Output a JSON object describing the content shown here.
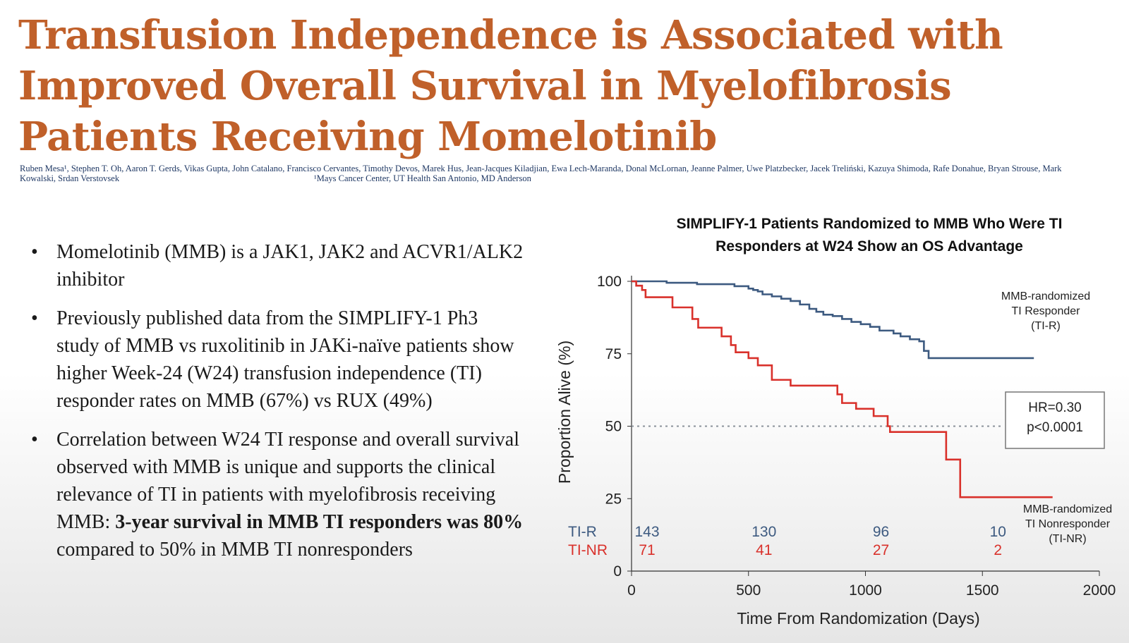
{
  "slide": {
    "title": "Transfusion Independence is Associated with Improved Overall Survival in Myelofibrosis Patients Receiving Momelotinib",
    "authors": "Ruben Mesa¹, Stephen T. Oh, Aaron T. Gerds, Vikas Gupta, John Catalano, Francisco Cervantes, Timothy Devos, Marek Hus, Jean-Jacques Kiladjian, Ewa Lech-Maranda, Donal McLornan, Jeanne Palmer, Uwe Platzbecker, Jacek Treliński, Kazuya Shimoda, Rafe Donahue, Bryan Strouse, Mark Kowalski, Srdan Verstovsek",
    "affiliation": "¹Mays Cancer Center, UT Health San Antonio, MD Anderson",
    "bullets": [
      {
        "text": "Momelotinib (MMB) is a JAK1, JAK2 and ACVR1/ALK2 inhibitor"
      },
      {
        "text": "Previously published data from the SIMPLIFY-1 Ph3 study of MMB vs ruxolitinib in JAKi-naïve patients show higher Week-24 (W24) transfusion independence (TI) responder rates on MMB (67%) vs RUX (49%)"
      },
      {
        "text_before": "Correlation between W24 TI response and overall survival observed with MMB is unique and supports the clinical relevance of TI in patients with myelofibrosis receiving MMB: ",
        "bold": "3-year survival in MMB TI responders was 80%",
        "text_after": " compared to 50% in MMB TI nonresponders"
      }
    ]
  },
  "chart_data": {
    "type": "line",
    "title": "SIMPLIFY-1 Patients Randomized to MMB Who Were TI Responders at W24 Show an OS Advantage",
    "xlabel": "Time From Randomization (Days)",
    "ylabel": "Proportion Alive (%)",
    "xlim": [
      0,
      2000
    ],
    "ylim": [
      0,
      100
    ],
    "xticks": [
      0,
      500,
      1000,
      1500,
      2000
    ],
    "yticks": [
      0,
      25,
      50,
      75,
      100
    ],
    "reference_line": 50,
    "series": [
      {
        "name": "MMB-randomized TI Responder (TI-R)",
        "label_lines": [
          "MMB-randomized",
          "TI Responder",
          "(TI-R)"
        ],
        "color": "#3d5a80",
        "x": [
          0,
          90,
          150,
          280,
          440,
          480,
          500,
          520,
          540,
          560,
          600,
          640,
          680,
          720,
          760,
          790,
          820,
          860,
          900,
          940,
          980,
          1020,
          1060,
          1120,
          1150,
          1190,
          1230,
          1250,
          1270,
          1720
        ],
        "y": [
          100,
          100,
          99.5,
          99,
          98.3,
          98.3,
          97.5,
          97,
          96.5,
          95.5,
          94.8,
          94,
          93.2,
          92,
          90.5,
          89.5,
          88.5,
          88,
          87,
          86,
          85.2,
          84.3,
          83,
          82,
          81,
          80,
          79.3,
          76,
          73.5,
          73.5
        ]
      },
      {
        "name": "MMB-randomized TI Nonresponder (TI-NR)",
        "label_lines": [
          "MMB-randomized",
          "TI Nonresponder",
          "(TI-NR)"
        ],
        "color": "#d9312b",
        "x": [
          0,
          20,
          45,
          60,
          175,
          260,
          285,
          300,
          385,
          425,
          445,
          500,
          540,
          600,
          630,
          680,
          860,
          880,
          900,
          960,
          1035,
          1085,
          1095,
          1105,
          1345,
          1405,
          1800
        ],
        "y": [
          100,
          98.5,
          97,
          94.5,
          91,
          87,
          84,
          84,
          81,
          78,
          75.5,
          73.5,
          71,
          66,
          66,
          64,
          64,
          61,
          58,
          56,
          53.5,
          53.5,
          50,
          48,
          38.5,
          25.5,
          25.5
        ]
      }
    ],
    "risk_table": {
      "x": [
        0,
        500,
        1000,
        1500
      ],
      "rows": [
        {
          "label": "TI-R",
          "counts": [
            "143",
            "130",
            "96",
            "10"
          ],
          "color": "#3d5a80"
        },
        {
          "label": "TI-NR",
          "counts": [
            "71",
            "41",
            "27",
            "2"
          ],
          "color": "#d9312b"
        }
      ]
    },
    "annotation": {
      "line1": "HR=0.30",
      "line2": "p<0.0001"
    }
  }
}
